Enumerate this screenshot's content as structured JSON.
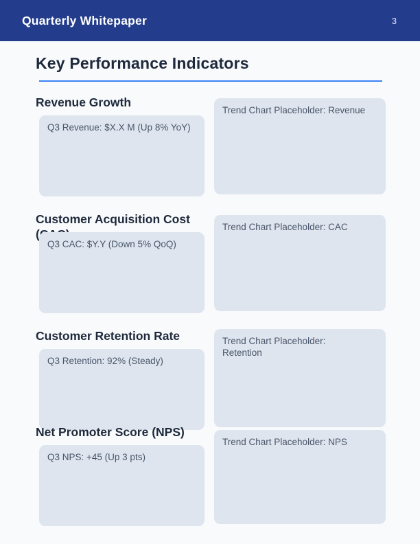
{
  "header": {
    "title": "Quarterly Whitepaper",
    "page_number": "3"
  },
  "page": {
    "title": "Key Performance Indicators"
  },
  "sections": [
    {
      "heading": "Revenue Growth",
      "metric": "Q3 Revenue: $X.X M (Up 8% YoY)",
      "trend": "Trend Chart Placeholder: Revenue"
    },
    {
      "heading": "Customer Acquisition Cost (CAC)",
      "metric": "Q3 CAC: $Y.Y (Down 5% QoQ)",
      "trend": "Trend Chart Placeholder: CAC"
    },
    {
      "heading": "Customer Retention Rate",
      "metric": "Q3 Retention: 92% (Steady)",
      "trend": "Trend Chart Placeholder:\nRetention"
    },
    {
      "heading": "Net Promoter Score (NPS)",
      "metric": "Q3 NPS: +45 (Up 3 pts)",
      "trend": "Trend Chart Placeholder: NPS"
    }
  ],
  "colors": {
    "header_bg": "#233c8c",
    "header_text": "#ffffff",
    "page_bg": "#f8fafc",
    "heading_text": "#1e293b",
    "accent_rule": "#3b82f6",
    "box_bg": "#dfe5ee",
    "box_text": "#475569"
  }
}
